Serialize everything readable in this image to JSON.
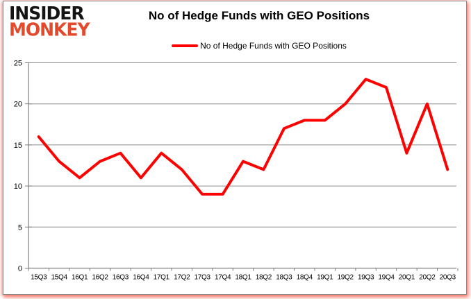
{
  "logo": {
    "line1": "INSIDER",
    "line2": "MONKEY",
    "accent_color": "#e3492b"
  },
  "header": {
    "title": "No of Hedge Funds with GEO Positions"
  },
  "legend": {
    "label": "No of Hedge Funds with GEO Positions",
    "line_color": "#FF0000"
  },
  "chart_data": {
    "type": "line",
    "title": "No of Hedge Funds with GEO Positions",
    "categories": [
      "15Q3",
      "15Q4",
      "16Q1",
      "16Q2",
      "16Q3",
      "16Q4",
      "17Q1",
      "17Q2",
      "17Q3",
      "17Q4",
      "18Q1",
      "18Q2",
      "18Q3",
      "18Q4",
      "19Q1",
      "19Q2",
      "19Q3",
      "19Q4",
      "20Q1",
      "20Q2",
      "20Q3"
    ],
    "series": [
      {
        "name": "No of Hedge Funds with GEO Positions",
        "color": "#FF0000",
        "values": [
          16,
          13,
          11,
          13,
          14,
          11,
          14,
          12,
          9,
          9,
          13,
          12,
          17,
          18,
          18,
          20,
          23,
          22,
          14,
          20,
          12
        ]
      }
    ],
    "xlabel": "",
    "ylabel": "",
    "ylim": [
      0,
      25
    ],
    "yticks": [
      0,
      5,
      10,
      15,
      20,
      25
    ],
    "grid": true,
    "legend_position": "top",
    "colors": {
      "gridline": "#8c8c8c",
      "axis": "#7f7f7f",
      "tick_label": "#000000"
    }
  }
}
